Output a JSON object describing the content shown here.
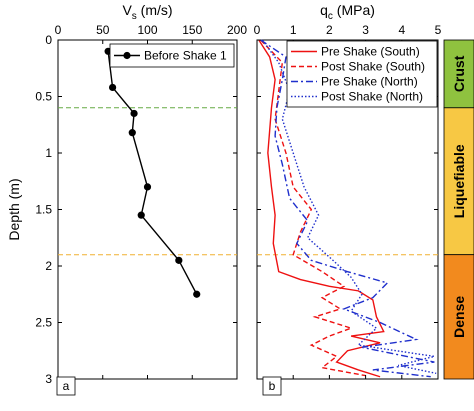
{
  "chart_data": [
    {
      "panel_label": "a",
      "type": "line",
      "xlabel": {
        "main": "V",
        "sub": "s",
        "rest": " (m/s)"
      },
      "ylabel": "Depth (m)",
      "xlim": [
        0,
        200
      ],
      "ylim": [
        3,
        0
      ],
      "y_reversed": true,
      "x_ticks": [
        "0",
        "50",
        "100",
        "150",
        "200"
      ],
      "y_ticks": [
        "0",
        "0.5",
        "1",
        "1.5",
        "2",
        "2.5",
        "3"
      ],
      "x_axis_position": "top",
      "grid": false,
      "legend": "top-right",
      "series": [
        {
          "name": "Before Shake 1",
          "color": "#000000",
          "marker": "circle",
          "points": [
            [
              56,
              0.1
            ],
            [
              61,
              0.42
            ],
            [
              85,
              0.65
            ],
            [
              83,
              0.82
            ],
            [
              100,
              1.3
            ],
            [
              93,
              1.55
            ],
            [
              135,
              1.95
            ],
            [
              155,
              2.25
            ]
          ]
        }
      ],
      "reference_lines": [
        {
          "depth": 0.6,
          "color": "#66aa44"
        },
        {
          "depth": 1.9,
          "color": "#f0b030"
        }
      ]
    },
    {
      "panel_label": "b",
      "type": "line",
      "xlabel": {
        "main": "q",
        "sub": "c",
        "rest": " (MPa)"
      },
      "xlim": [
        0,
        5
      ],
      "ylim": [
        3,
        0
      ],
      "y_reversed": true,
      "x_ticks": [
        "0",
        "1",
        "2",
        "3",
        "4",
        "5"
      ],
      "x_axis_position": "top",
      "grid": false,
      "legend": "top-right",
      "series": [
        {
          "name": "Pre Shake  (South)",
          "color": "#ee1111",
          "dash": "solid",
          "points": [
            [
              0.05,
              0.0
            ],
            [
              0.35,
              0.15
            ],
            [
              0.5,
              0.35
            ],
            [
              0.4,
              0.6
            ],
            [
              0.35,
              0.8
            ],
            [
              0.3,
              1.0
            ],
            [
              0.4,
              1.3
            ],
            [
              0.5,
              1.55
            ],
            [
              0.45,
              1.8
            ],
            [
              0.6,
              2.05
            ],
            [
              1.2,
              2.12
            ],
            [
              2.0,
              2.18
            ],
            [
              2.8,
              2.22
            ],
            [
              3.2,
              2.3
            ],
            [
              3.3,
              2.45
            ],
            [
              3.5,
              2.58
            ],
            [
              2.6,
              2.62
            ],
            [
              3.4,
              2.68
            ],
            [
              2.5,
              2.75
            ],
            [
              2.2,
              2.85
            ],
            [
              2.8,
              2.92
            ],
            [
              3.4,
              2.98
            ]
          ]
        },
        {
          "name": "Post Shake  (South)",
          "color": "#ee1111",
          "dash": "dashed",
          "points": [
            [
              0.1,
              0.0
            ],
            [
              0.7,
              0.2
            ],
            [
              0.6,
              0.45
            ],
            [
              0.5,
              0.7
            ],
            [
              0.8,
              1.0
            ],
            [
              1.0,
              1.3
            ],
            [
              1.5,
              1.5
            ],
            [
              1.2,
              1.7
            ],
            [
              1.0,
              1.9
            ],
            [
              1.8,
              2.05
            ],
            [
              2.4,
              2.18
            ],
            [
              1.8,
              2.28
            ],
            [
              2.3,
              2.38
            ],
            [
              1.6,
              2.45
            ],
            [
              2.6,
              2.55
            ],
            [
              2.0,
              2.62
            ],
            [
              1.5,
              2.7
            ],
            [
              2.2,
              2.8
            ],
            [
              1.8,
              2.9
            ],
            [
              3.0,
              2.97
            ]
          ]
        },
        {
          "name": "Pre Shake  (North)",
          "color": "#1f2fcc",
          "dash": "dashdot",
          "points": [
            [
              0.1,
              0.0
            ],
            [
              0.8,
              0.15
            ],
            [
              0.7,
              0.35
            ],
            [
              0.55,
              0.6
            ],
            [
              0.5,
              0.85
            ],
            [
              0.7,
              1.1
            ],
            [
              0.9,
              1.4
            ],
            [
              1.4,
              1.6
            ],
            [
              1.1,
              1.8
            ],
            [
              1.5,
              1.95
            ],
            [
              2.5,
              2.05
            ],
            [
              3.6,
              2.15
            ],
            [
              3.2,
              2.28
            ],
            [
              2.4,
              2.38
            ],
            [
              3.4,
              2.5
            ],
            [
              4.4,
              2.65
            ],
            [
              2.9,
              2.72
            ],
            [
              4.9,
              2.85
            ],
            [
              3.2,
              2.92
            ],
            [
              4.8,
              2.98
            ]
          ]
        },
        {
          "name": "Post Shake  (North)",
          "color": "#1f2fcc",
          "dash": "dotted",
          "points": [
            [
              0.15,
              0.0
            ],
            [
              0.6,
              0.2
            ],
            [
              0.9,
              0.45
            ],
            [
              0.7,
              0.7
            ],
            [
              1.0,
              1.0
            ],
            [
              1.3,
              1.3
            ],
            [
              1.7,
              1.55
            ],
            [
              1.4,
              1.75
            ],
            [
              2.1,
              1.95
            ],
            [
              2.6,
              2.1
            ],
            [
              2.9,
              2.25
            ],
            [
              2.6,
              2.4
            ],
            [
              3.3,
              2.55
            ],
            [
              2.8,
              2.7
            ],
            [
              4.9,
              2.8
            ],
            [
              3.9,
              2.88
            ],
            [
              4.95,
              2.95
            ]
          ]
        }
      ],
      "reference_lines": [
        {
          "depth": 1.9,
          "color": "#f0b030"
        }
      ]
    }
  ],
  "layers": [
    {
      "label": "Crust",
      "top": 0,
      "bottom": 0.6,
      "color": "#8fc23f"
    },
    {
      "label": "Liquefiable",
      "top": 0.6,
      "bottom": 1.9,
      "color": "#f7c844"
    },
    {
      "label": "Dense",
      "top": 1.9,
      "bottom": 3.0,
      "color": "#f28a1e"
    }
  ]
}
